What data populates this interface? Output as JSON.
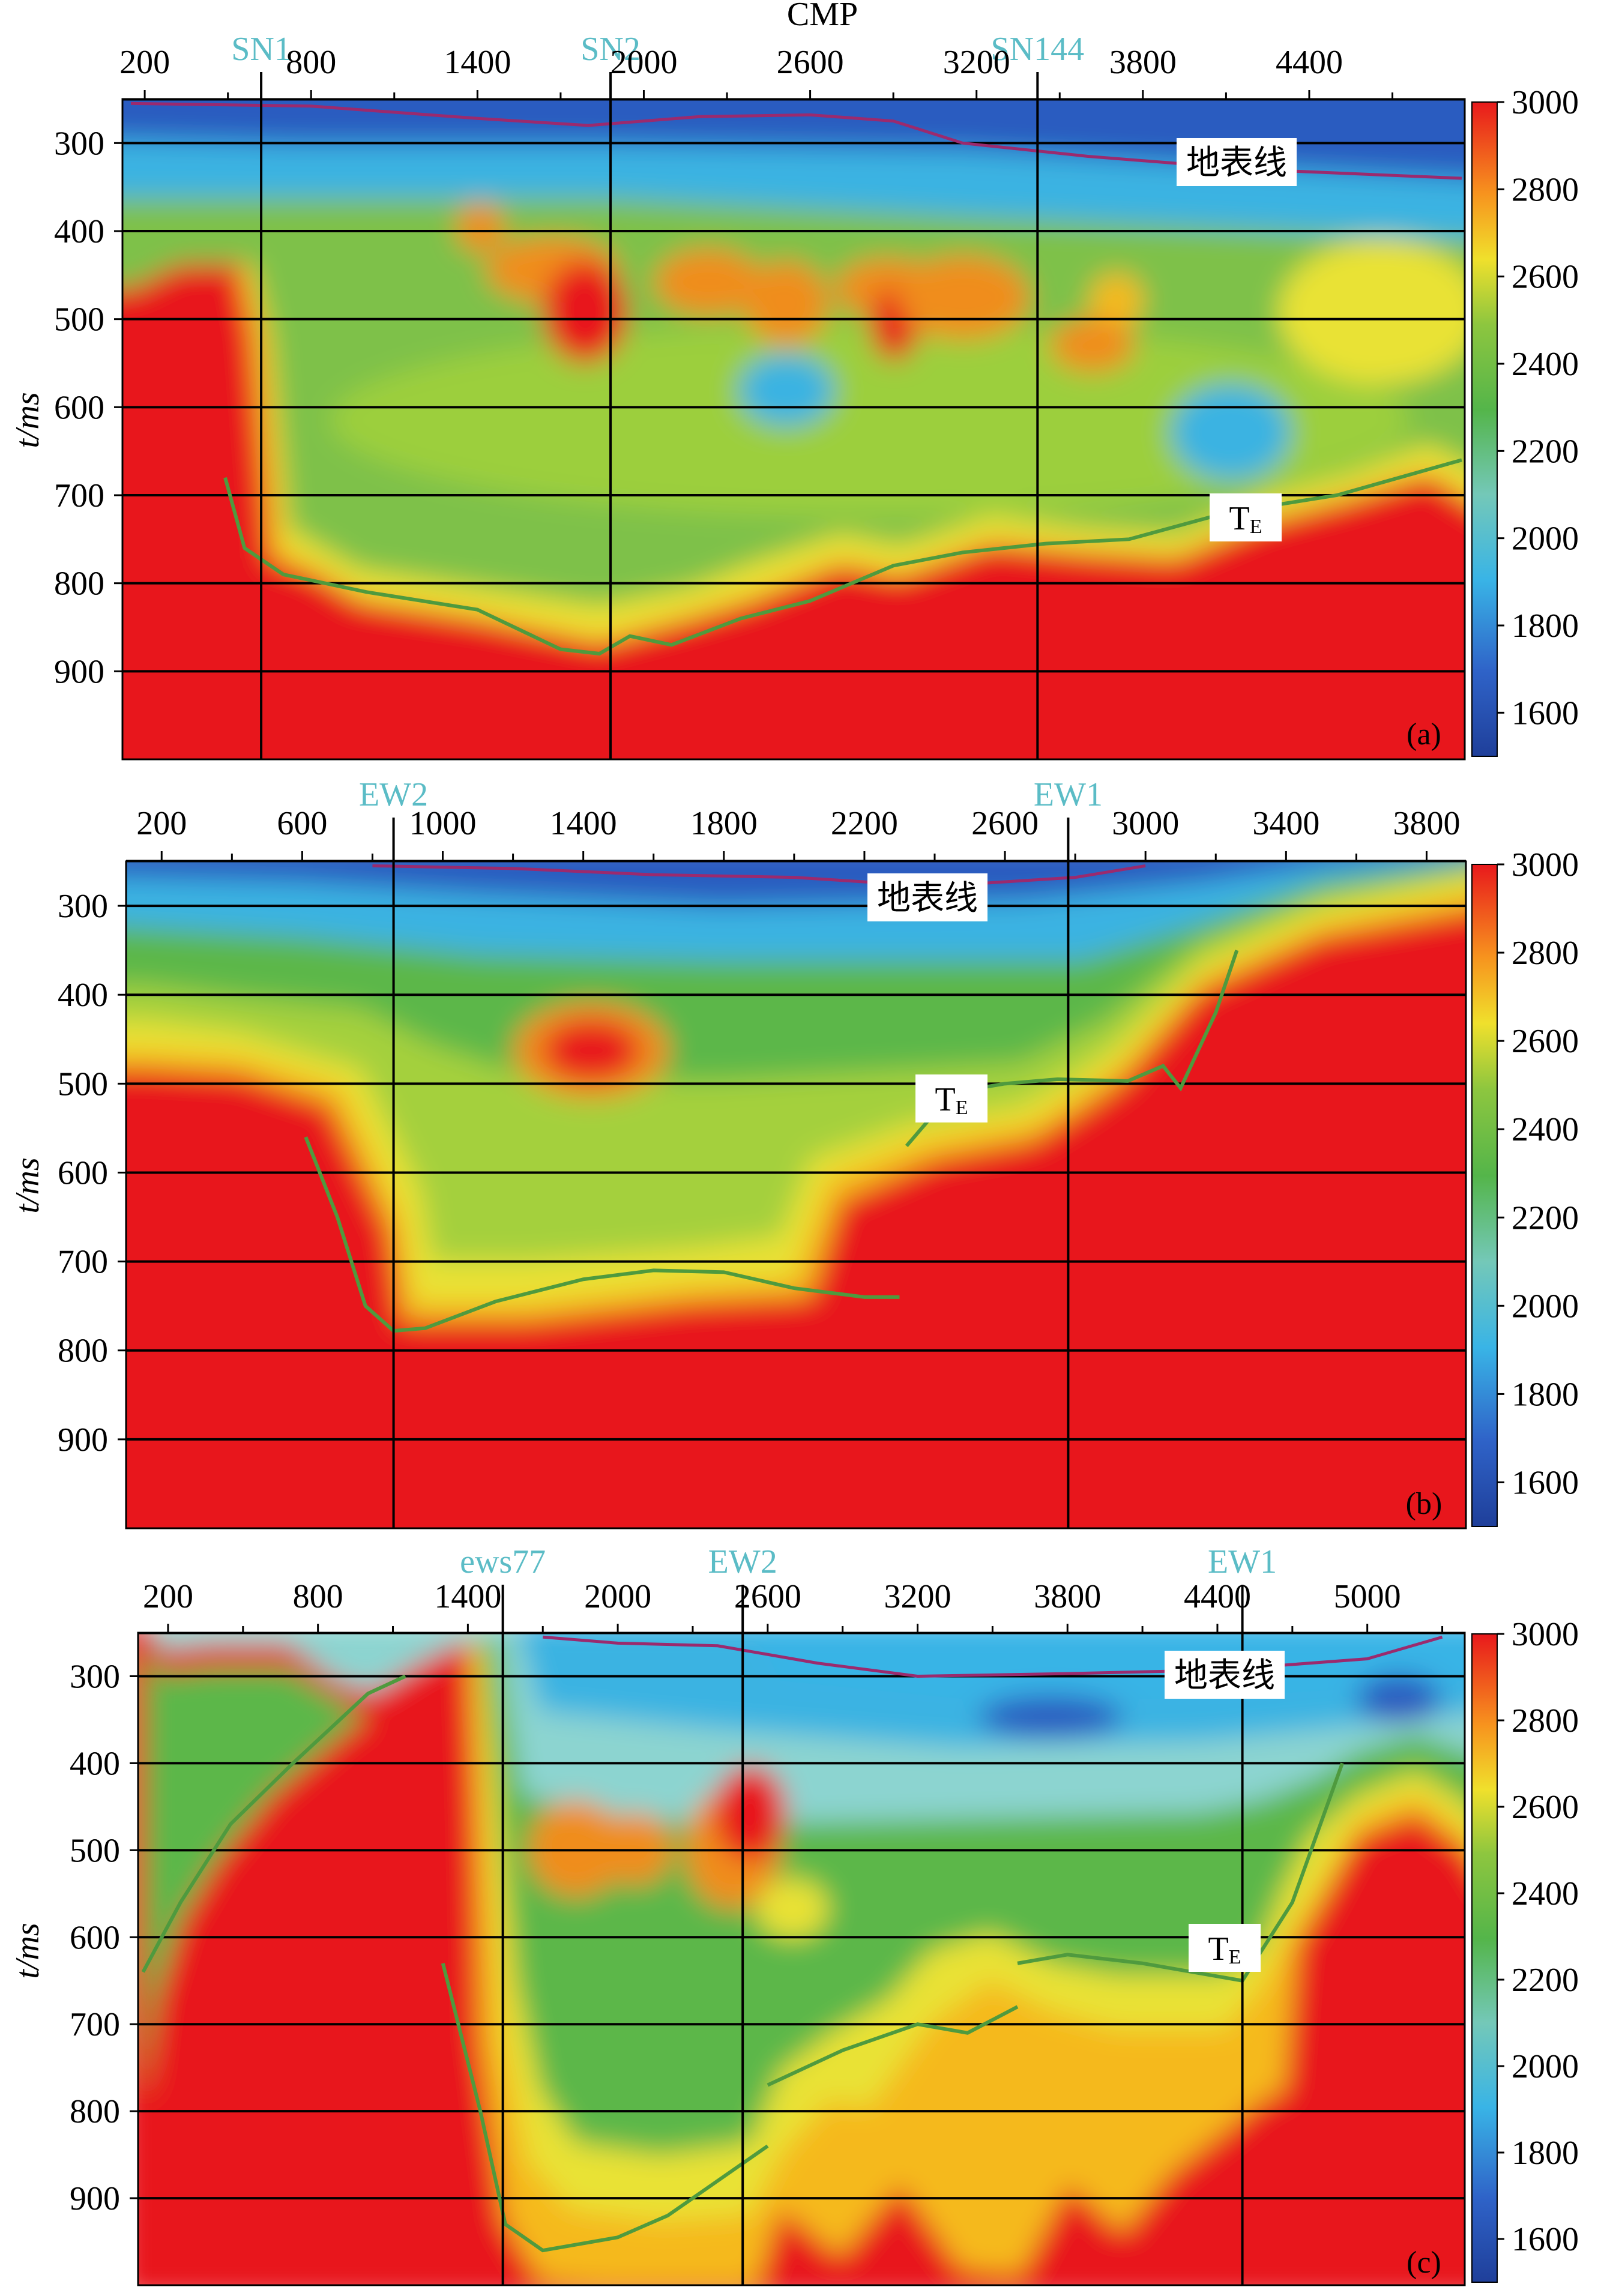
{
  "chart_data": [
    {
      "type": "heatmap",
      "panel": "(a)",
      "title": "CMP",
      "ylabel": "t/ms",
      "xticks": [
        200,
        800,
        1400,
        2000,
        2600,
        3200,
        3800,
        4400
      ],
      "xlim": [
        150,
        4950
      ],
      "yticks": [
        300,
        400,
        500,
        600,
        700,
        800,
        900
      ],
      "ylim": [
        250,
        1000
      ],
      "grid_lines_t": [
        300,
        400,
        500,
        600,
        700,
        800,
        900
      ],
      "markers": [
        {
          "label": "SN1",
          "x": 620
        },
        {
          "label": "SN2",
          "x": 1880
        },
        {
          "label": "SN144",
          "x": 3420
        }
      ],
      "annotations": [
        {
          "text": "地表线",
          "x": 3880,
          "t": 320
        },
        {
          "text": "T",
          "sub": "E",
          "x": 3880,
          "t": 722
        }
      ],
      "surface_line": [
        [
          150,
          255
        ],
        [
          800,
          258
        ],
        [
          1400,
          272
        ],
        [
          1800,
          280
        ],
        [
          2200,
          270
        ],
        [
          2600,
          268
        ],
        [
          2900,
          275
        ],
        [
          3150,
          300
        ],
        [
          3600,
          315
        ],
        [
          4200,
          330
        ],
        [
          4950,
          340
        ]
      ],
      "te_horizon": [
        [
          490,
          680
        ],
        [
          560,
          760
        ],
        [
          700,
          790
        ],
        [
          1000,
          810
        ],
        [
          1400,
          830
        ],
        [
          1700,
          875
        ],
        [
          1840,
          880
        ],
        [
          1950,
          860
        ],
        [
          2100,
          870
        ],
        [
          2350,
          840
        ],
        [
          2600,
          820
        ],
        [
          2900,
          780
        ],
        [
          3150,
          765
        ],
        [
          3450,
          755
        ],
        [
          3750,
          750
        ],
        [
          4100,
          720
        ],
        [
          4500,
          700
        ],
        [
          4950,
          660
        ]
      ],
      "colorbar": {
        "min": 1500,
        "max": 3000,
        "ticks": [
          1600,
          1800,
          2000,
          2200,
          2400,
          2600,
          2800,
          3000
        ]
      }
    },
    {
      "type": "heatmap",
      "panel": "(b)",
      "title": "",
      "ylabel": "t/ms",
      "xticks": [
        200,
        600,
        1000,
        1400,
        1800,
        2200,
        2600,
        3000,
        3400,
        3800
      ],
      "xlim": [
        150,
        3900
      ],
      "yticks": [
        300,
        400,
        500,
        600,
        700,
        800,
        900
      ],
      "ylim": [
        250,
        1000
      ],
      "grid_lines_t": [
        300,
        400,
        500,
        600,
        700,
        800,
        900
      ],
      "markers": [
        {
          "label": "EW2",
          "x": 860
        },
        {
          "label": "EW1",
          "x": 2780
        }
      ],
      "annotations": [
        {
          "text": "地表线",
          "x": 2350,
          "t": 287
        },
        {
          "text": "T",
          "sub": "E",
          "x": 2380,
          "t": 515
        }
      ],
      "surface_line": [
        [
          800,
          255
        ],
        [
          1200,
          258
        ],
        [
          1600,
          265
        ],
        [
          2000,
          268
        ],
        [
          2400,
          278
        ],
        [
          2800,
          268
        ],
        [
          3000,
          255
        ]
      ],
      "te_horizon": [
        [
          610,
          560
        ],
        [
          700,
          650
        ],
        [
          780,
          750
        ],
        [
          860,
          778
        ],
        [
          950,
          775
        ],
        [
          1150,
          745
        ],
        [
          1400,
          720
        ],
        [
          1600,
          710
        ],
        [
          1800,
          712
        ],
        [
          2000,
          730
        ],
        [
          2200,
          740
        ],
        [
          2300,
          740
        ]
      ],
      "te_horizon_2": [
        [
          2320,
          570
        ],
        [
          2450,
          510
        ],
        [
          2600,
          500
        ],
        [
          2750,
          495
        ],
        [
          2950,
          497
        ],
        [
          3050,
          480
        ],
        [
          3100,
          505
        ],
        [
          3200,
          420
        ],
        [
          3260,
          350
        ]
      ],
      "colorbar": {
        "min": 1500,
        "max": 3000,
        "ticks": [
          1600,
          1800,
          2000,
          2200,
          2400,
          2600,
          2800,
          3000
        ]
      }
    },
    {
      "type": "heatmap",
      "panel": "(c)",
      "title": "",
      "ylabel": "t/ms",
      "xticks": [
        200,
        800,
        1400,
        2000,
        2600,
        3200,
        3800,
        4400,
        5000
      ],
      "xlim": [
        80,
        5390
      ],
      "yticks": [
        300,
        400,
        500,
        600,
        700,
        800,
        900
      ],
      "ylim": [
        250,
        1000
      ],
      "grid_lines_t": [
        300,
        400,
        500,
        600,
        700,
        800,
        900
      ],
      "markers": [
        {
          "label": "ews77",
          "x": 1540
        },
        {
          "label": "EW2",
          "x": 2500
        },
        {
          "label": "EW1",
          "x": 4500
        }
      ],
      "annotations": [
        {
          "text": "地表线",
          "x": 4300,
          "t": 293
        },
        {
          "text": "T",
          "sub": "E",
          "x": 4380,
          "t": 662
        }
      ],
      "surface_line": [
        [
          1700,
          255
        ],
        [
          2000,
          262
        ],
        [
          2400,
          265
        ],
        [
          2800,
          285
        ],
        [
          3200,
          300
        ],
        [
          3800,
          297
        ],
        [
          4400,
          293
        ],
        [
          5000,
          280
        ],
        [
          5300,
          255
        ]
      ],
      "te_horizon": [
        [
          100,
          640
        ],
        [
          250,
          560
        ],
        [
          450,
          470
        ],
        [
          700,
          400
        ],
        [
          1000,
          320
        ],
        [
          1150,
          300
        ]
      ],
      "te_horizon_2": [
        [
          1300,
          630
        ],
        [
          1450,
          800
        ],
        [
          1550,
          930
        ],
        [
          1700,
          960
        ],
        [
          2000,
          945
        ],
        [
          2200,
          920
        ],
        [
          2400,
          880
        ],
        [
          2600,
          840
        ]
      ],
      "te_horizon_3": [
        [
          2600,
          770
        ],
        [
          2900,
          730
        ],
        [
          3200,
          700
        ],
        [
          3400,
          710
        ],
        [
          3600,
          680
        ]
      ],
      "te_horizon_4": [
        [
          3600,
          630
        ],
        [
          3800,
          620
        ],
        [
          4100,
          630
        ],
        [
          4500,
          650
        ],
        [
          4700,
          560
        ],
        [
          4900,
          400
        ]
      ],
      "colorbar": {
        "min": 1500,
        "max": 3000,
        "ticks": [
          1600,
          1800,
          2000,
          2200,
          2400,
          2600,
          2800,
          3000
        ]
      }
    }
  ]
}
